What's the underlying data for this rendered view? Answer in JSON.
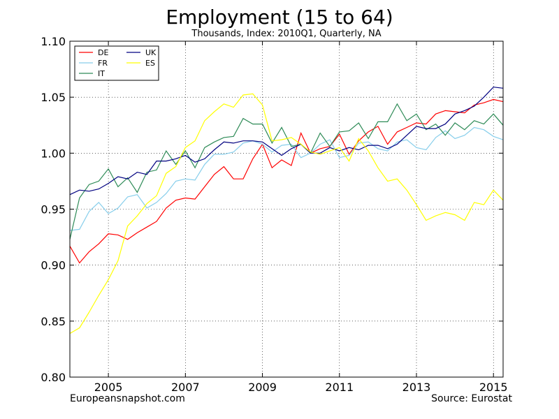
{
  "chart_data": {
    "type": "line",
    "title": "Employment (15 to 64)",
    "subtitle": "Thousands, Index: 2010Q1, Quarterly, NA",
    "xlim": [
      2004.0,
      2015.25
    ],
    "ylim": [
      0.8,
      1.1
    ],
    "x_ticks": [
      2005,
      2007,
      2009,
      2011,
      2013,
      2015
    ],
    "x_tick_labels": [
      "2005",
      "2007",
      "2009",
      "2011",
      "2013",
      "2015"
    ],
    "y_ticks": [
      0.8,
      0.85,
      0.9,
      0.95,
      1.0,
      1.05,
      1.1
    ],
    "y_tick_labels": [
      "0.80",
      "0.85",
      "0.90",
      "0.95",
      "1.00",
      "1.05",
      "1.10"
    ],
    "grid": true,
    "legend": "top-left",
    "x": [
      2004.0,
      2004.25,
      2004.5,
      2004.75,
      2005.0,
      2005.25,
      2005.5,
      2005.75,
      2006.0,
      2006.25,
      2006.5,
      2006.75,
      2007.0,
      2007.25,
      2007.5,
      2007.75,
      2008.0,
      2008.25,
      2008.5,
      2008.75,
      2009.0,
      2009.25,
      2009.5,
      2009.75,
      2010.0,
      2010.25,
      2010.5,
      2010.75,
      2011.0,
      2011.25,
      2011.5,
      2011.75,
      2012.0,
      2012.25,
      2012.5,
      2012.75,
      2013.0,
      2013.25,
      2013.5,
      2013.75,
      2014.0,
      2014.25,
      2014.5,
      2014.75,
      2015.0,
      2015.25
    ],
    "series": [
      {
        "name": "DE",
        "color": "#ff0000",
        "values": [
          0.917,
          0.902,
          0.912,
          0.919,
          0.928,
          0.927,
          0.923,
          0.929,
          0.934,
          0.939,
          0.951,
          0.958,
          0.96,
          0.959,
          0.97,
          0.981,
          0.988,
          0.977,
          0.977,
          0.995,
          1.008,
          0.987,
          0.994,
          0.989,
          1.018,
          1.0,
          1.004,
          1.006,
          1.017,
          0.999,
          1.011,
          1.019,
          1.024,
          1.008,
          1.019,
          1.023,
          1.027,
          1.026,
          1.035,
          1.038,
          1.037,
          1.036,
          1.043,
          1.045,
          1.048,
          1.046
        ]
      },
      {
        "name": "FR",
        "color": "#87ceeb",
        "values": [
          0.931,
          0.932,
          0.948,
          0.956,
          0.946,
          0.951,
          0.961,
          0.963,
          0.951,
          0.956,
          0.964,
          0.975,
          0.977,
          0.976,
          0.99,
          0.999,
          0.999,
          1.001,
          1.009,
          1.011,
          1.008,
          1.001,
          1.007,
          1.008,
          0.996,
          1.0,
          1.008,
          1.012,
          0.996,
          0.998,
          1.009,
          1.01,
          1.004,
          1.002,
          1.01,
          1.012,
          1.005,
          1.003,
          1.014,
          1.02,
          1.013,
          1.016,
          1.023,
          1.021,
          1.015,
          1.012
        ]
      },
      {
        "name": "IT",
        "color": "#2e8b57",
        "values": [
          0.923,
          0.96,
          0.972,
          0.975,
          0.986,
          0.97,
          0.978,
          0.965,
          0.983,
          0.985,
          1.002,
          0.99,
          1.002,
          0.987,
          1.005,
          1.01,
          1.014,
          1.015,
          1.031,
          1.026,
          1.026,
          1.009,
          1.023,
          1.006,
          1.008,
          1.0,
          1.018,
          1.006,
          1.019,
          1.02,
          1.027,
          1.013,
          1.028,
          1.028,
          1.044,
          1.029,
          1.035,
          1.021,
          1.026,
          1.016,
          1.027,
          1.021,
          1.029,
          1.026,
          1.035,
          1.025
        ]
      },
      {
        "name": "UK",
        "color": "#000080",
        "values": [
          0.963,
          0.967,
          0.966,
          0.968,
          0.973,
          0.979,
          0.977,
          0.983,
          0.981,
          0.993,
          0.993,
          0.995,
          0.998,
          0.992,
          0.995,
          1.003,
          1.01,
          1.009,
          1.011,
          1.011,
          1.01,
          1.004,
          0.998,
          1.004,
          1.008,
          1.0,
          1.0,
          1.005,
          1.002,
          1.005,
          1.003,
          1.007,
          1.007,
          1.004,
          1.008,
          1.016,
          1.024,
          1.022,
          1.022,
          1.026,
          1.035,
          1.038,
          1.042,
          1.05,
          1.059,
          1.058
        ]
      },
      {
        "name": "ES",
        "color": "#ffff00",
        "values": [
          0.839,
          0.844,
          0.858,
          0.873,
          0.887,
          0.904,
          0.935,
          0.944,
          0.955,
          0.962,
          0.982,
          0.988,
          1.005,
          1.011,
          1.029,
          1.037,
          1.044,
          1.041,
          1.052,
          1.053,
          1.043,
          1.011,
          1.012,
          1.014,
          1.008,
          1.001,
          0.999,
          1.002,
          1.005,
          0.993,
          1.013,
          1.002,
          0.987,
          0.975,
          0.977,
          0.967,
          0.954,
          0.94,
          0.944,
          0.947,
          0.945,
          0.94,
          0.956,
          0.954,
          0.967,
          0.958
        ]
      }
    ]
  },
  "footer": {
    "left": "Europeansnapshot.com",
    "right": "Source: Eurostat"
  }
}
